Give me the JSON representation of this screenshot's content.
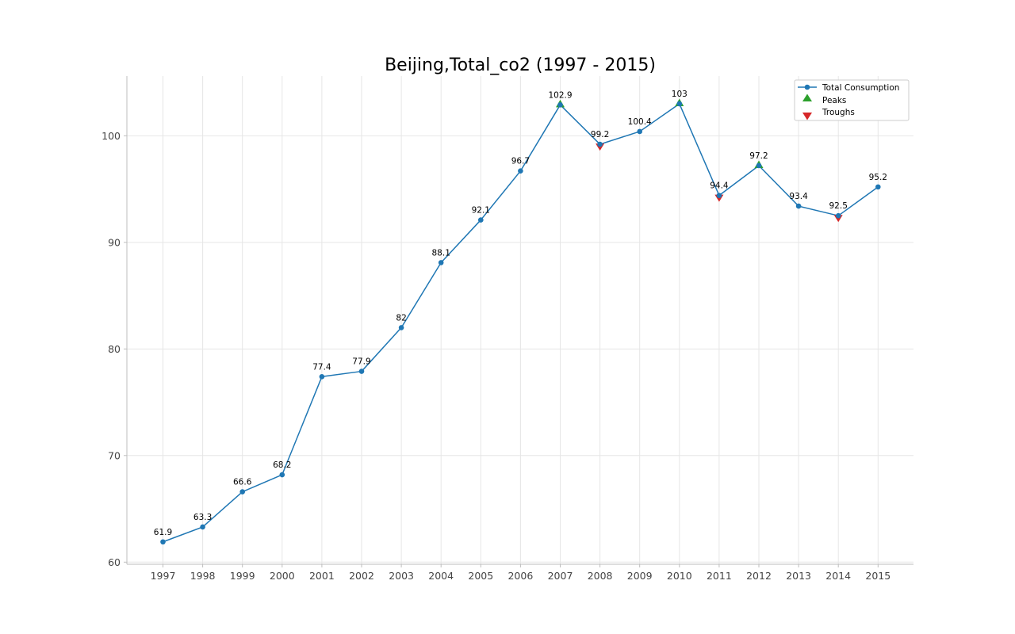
{
  "chart_data": {
    "type": "line",
    "title": "Beijing,Total_co2 (1997 - 2015)",
    "xlabel": "",
    "ylabel": "",
    "categories": [
      "1997",
      "1998",
      "1999",
      "2000",
      "2001",
      "2002",
      "2003",
      "2004",
      "2005",
      "2006",
      "2007",
      "2008",
      "2009",
      "2010",
      "2011",
      "2012",
      "2013",
      "2014",
      "2015"
    ],
    "series": [
      {
        "name": "Total Consumption",
        "values": [
          61.9,
          63.3,
          66.6,
          68.2,
          77.4,
          77.9,
          82,
          88.1,
          92.1,
          96.7,
          102.9,
          99.2,
          100.4,
          103,
          94.4,
          97.2,
          93.4,
          92.5,
          95.2
        ],
        "labels": [
          "61.9",
          "63.3",
          "66.6",
          "68.2",
          "77.4",
          "77.9",
          "82",
          "88.1",
          "92.1",
          "96.7",
          "102.9",
          "99.2",
          "100.4",
          "103",
          "94.4",
          "97.2",
          "93.4",
          "92.5",
          "95.2"
        ],
        "color": "#1f77b4",
        "marker": "circle"
      }
    ],
    "peaks": {
      "name": "Peaks",
      "points": [
        {
          "x": "2007",
          "y": 102.9
        },
        {
          "x": "2010",
          "y": 103
        },
        {
          "x": "2012",
          "y": 97.2
        }
      ],
      "color": "#2ca02c",
      "marker": "triangle-up"
    },
    "troughs": {
      "name": "Troughs",
      "points": [
        {
          "x": "2008",
          "y": 99.2
        },
        {
          "x": "2011",
          "y": 94.4
        },
        {
          "x": "2014",
          "y": 92.5
        }
      ],
      "color": "#d62728",
      "marker": "triangle-down"
    },
    "ylim": [
      59.8,
      105.6
    ],
    "yticks": [
      "60",
      "70",
      "80",
      "90",
      "100"
    ],
    "grid": true,
    "legend": {
      "placement": "top-right",
      "entries": [
        "Total Consumption",
        "Peaks",
        "Troughs"
      ]
    }
  }
}
